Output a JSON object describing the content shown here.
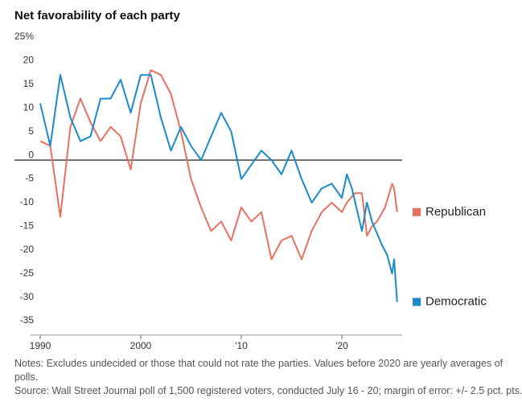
{
  "chart_data": {
    "type": "line",
    "title": "Net favorability of each party",
    "xlim": [
      1989,
      2026
    ],
    "xticks": [
      1990,
      2000,
      {
        "value": 2010,
        "label": "'10"
      },
      {
        "value": 2020,
        "label": "'20"
      }
    ],
    "ylim": [
      -37,
      28
    ],
    "yticks": [
      {
        "value": 25,
        "label": "25%"
      },
      20,
      15,
      10,
      5,
      0,
      -5,
      -10,
      -15,
      -20,
      -25,
      -30,
      -35
    ],
    "series": [
      {
        "name": "Republican",
        "color": "#e8705f",
        "x": [
          1990,
          1991,
          1992,
          1993,
          1994,
          1995,
          1996,
          1997,
          1998,
          1999,
          2000,
          2001,
          2002,
          2003,
          2004,
          2005,
          2006,
          2007,
          2008,
          2009,
          2010,
          2011,
          2012,
          2013,
          2014,
          2015,
          2016,
          2017,
          2018,
          2019,
          2020,
          2020.5,
          2021.3,
          2022,
          2022.5,
          2023,
          2023.5,
          2024.3,
          2025,
          2025.2,
          2025.5
        ],
        "values": [
          4,
          3,
          -12,
          7,
          13,
          8,
          4,
          7,
          5,
          -2,
          12,
          19,
          18,
          14,
          6,
          -4,
          -10,
          -15,
          -13,
          -17,
          -10,
          -13,
          -11,
          -21,
          -17,
          -16,
          -21,
          -15,
          -11,
          -9,
          -11,
          -9,
          -7,
          -7,
          -16,
          -14,
          -13,
          -10,
          -5,
          -6,
          -11
        ]
      },
      {
        "name": "Democratic",
        "color": "#1a8acb",
        "x": [
          1990,
          1991,
          1992,
          1993,
          1994,
          1995,
          1996,
          1997,
          1998,
          1999,
          2000,
          2001,
          2002,
          2003,
          2004,
          2005,
          2006,
          2007,
          2008,
          2009,
          2010,
          2011,
          2012,
          2013,
          2014,
          2015,
          2016,
          2017,
          2018,
          2019,
          2020,
          2020.5,
          2021,
          2022,
          2022.5,
          2023,
          2024,
          2024.5,
          2025,
          2025.2,
          2025.5
        ],
        "values": [
          12,
          3,
          18,
          9,
          4,
          5,
          13,
          13,
          17,
          10,
          18,
          18,
          9,
          2,
          7,
          3,
          0,
          5,
          10,
          6,
          -4,
          -1,
          2,
          0,
          -3,
          2,
          -4,
          -9,
          -6,
          -5,
          -8,
          -3,
          -6,
          -15,
          -9,
          -13,
          -18,
          -20,
          -24,
          -21,
          -30
        ]
      }
    ],
    "notes": "Notes: Excludes undecided or those that could not rate the parties. Values before 2020 are yearly averages of polls.",
    "source": "Source: Wall Street Journal poll of 1,500 registered voters, conducted July 16 - 20; margin of error: +/- 2.5 pct. pts."
  }
}
